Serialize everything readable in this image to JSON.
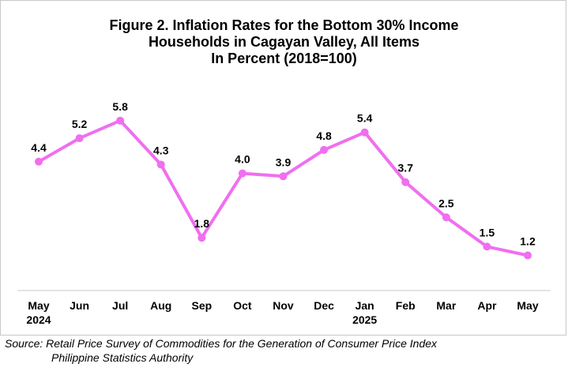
{
  "title_lines": [
    "Figure 2. Inflation Rates for the Bottom 30% Income",
    "Households in Cagayan Valley, All Items",
    "In Percent (2018=100)"
  ],
  "source": {
    "line1": "Source: Retail Price Survey of Commodities for the Generation of Consumer Price Index",
    "line2": "Philippine Statistics Authority"
  },
  "colors": {
    "line": "#f06ef0",
    "marker": "#f06ef0",
    "axis": "#c8c8c8",
    "text": "#000000"
  },
  "chart_data": {
    "type": "line",
    "title": "Figure 2. Inflation Rates for the Bottom 30% Income Households in Cagayan Valley, All Items In Percent (2018=100)",
    "categories": [
      [
        "May",
        "2024"
      ],
      [
        "Jun",
        ""
      ],
      [
        "Jul",
        ""
      ],
      [
        "Aug",
        ""
      ],
      [
        "Sep",
        ""
      ],
      [
        "Oct",
        ""
      ],
      [
        "Nov",
        ""
      ],
      [
        "Dec",
        ""
      ],
      [
        "Jan",
        "2025"
      ],
      [
        "Feb",
        ""
      ],
      [
        "Mar",
        ""
      ],
      [
        "Apr",
        ""
      ],
      [
        "May",
        ""
      ]
    ],
    "series": [
      {
        "values": [
          4.4,
          5.2,
          5.8,
          4.3,
          1.8,
          4.0,
          3.9,
          4.8,
          5.4,
          3.7,
          2.5,
          1.5,
          1.2
        ]
      }
    ],
    "data_labels": [
      "4.4",
      "5.2",
      "5.8",
      "4.3",
      "1.8",
      "4.0",
      "3.9",
      "4.8",
      "5.4",
      "3.7",
      "2.5",
      "1.5",
      "1.2"
    ],
    "ylim": [
      0,
      7
    ],
    "grid": false,
    "legend": "none",
    "xlabel": "",
    "ylabel": ""
  }
}
